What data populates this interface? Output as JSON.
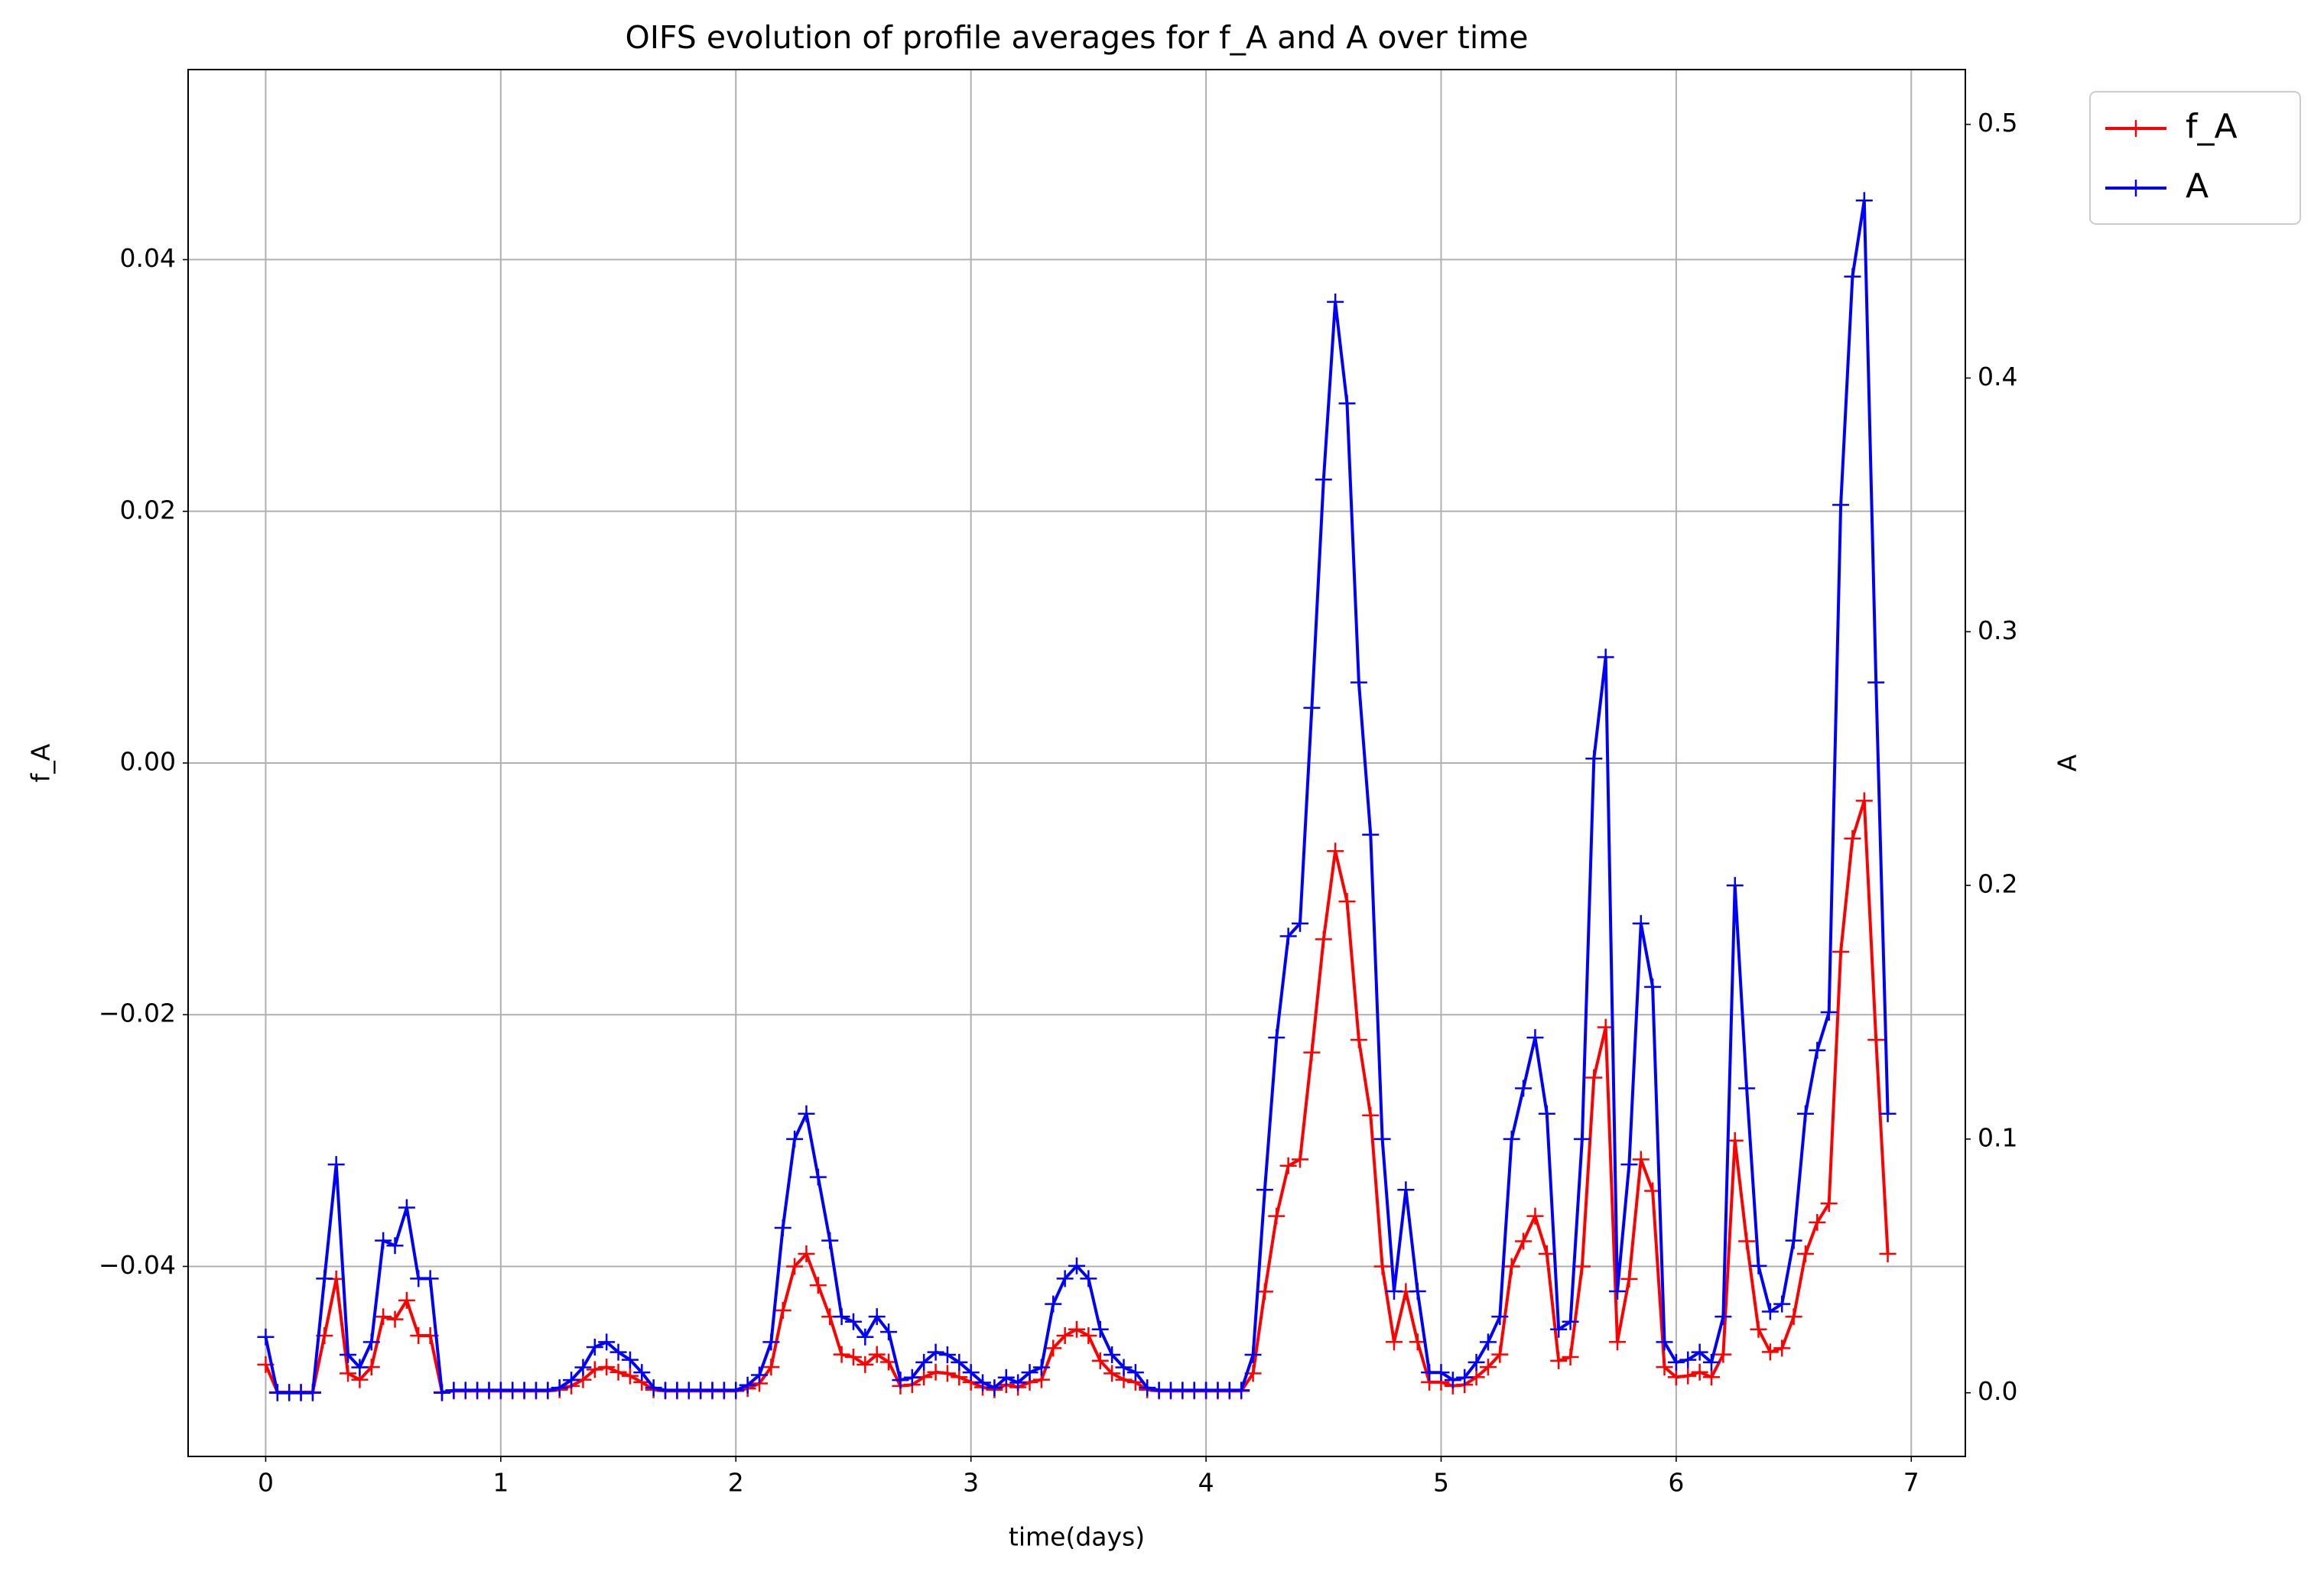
{
  "chart_data": {
    "type": "line",
    "title": "OIFS evolution of profile averages for f_A and A over time",
    "xlabel": "time(days)",
    "ylabel": "f_A",
    "y2label": "A",
    "grid": true,
    "legend": "outside upper right",
    "marker": "+",
    "xlim": [
      -0.33,
      7.23
    ],
    "xticks": [
      0,
      1,
      2,
      3,
      4,
      5,
      6,
      7
    ],
    "ylim": [
      -0.0551,
      0.0551
    ],
    "yticks": [
      {
        "value": -0.04,
        "label": "−0.04"
      },
      {
        "value": -0.02,
        "label": "−0.02"
      },
      {
        "value": 0,
        "label": "0.00"
      },
      0.02,
      0.04
    ],
    "y2lim": [
      -0.0251,
      0.5216
    ],
    "y2ticks": [
      {
        "value": 0,
        "label": "0.0"
      },
      0.1,
      0.2,
      0.3,
      0.4,
      0.5
    ],
    "x": [
      0,
      0.05,
      0.1,
      0.15,
      0.2,
      0.25,
      0.3,
      0.35,
      0.4,
      0.45,
      0.5,
      0.55,
      0.6,
      0.65,
      0.7,
      0.75,
      0.8,
      0.85,
      0.9,
      0.95,
      1,
      1.05,
      1.1,
      1.15,
      1.2,
      1.25,
      1.3,
      1.35,
      1.4,
      1.45,
      1.5,
      1.55,
      1.6,
      1.65,
      1.7,
      1.75,
      1.8,
      1.85,
      1.9,
      1.95,
      2,
      2.05,
      2.1,
      2.15,
      2.2,
      2.25,
      2.3,
      2.35,
      2.4,
      2.45,
      2.5,
      2.55,
      2.6,
      2.65,
      2.7,
      2.75,
      2.8,
      2.85,
      2.9,
      2.95,
      3,
      3.05,
      3.1,
      3.15,
      3.2,
      3.25,
      3.3,
      3.35,
      3.4,
      3.45,
      3.5,
      3.55,
      3.6,
      3.65,
      3.7,
      3.75,
      3.8,
      3.85,
      3.9,
      3.95,
      4,
      4.05,
      4.1,
      4.15,
      4.2,
      4.25,
      4.3,
      4.35,
      4.4,
      4.45,
      4.5,
      4.55,
      4.6,
      4.65,
      4.7,
      4.75,
      4.8,
      4.85,
      4.9,
      4.95,
      5,
      5.05,
      5.1,
      5.15,
      5.2,
      5.25,
      5.3,
      5.35,
      5.4,
      5.45,
      5.5,
      5.55,
      5.6,
      5.65,
      5.7,
      5.75,
      5.8,
      5.85,
      5.9,
      5.95,
      6,
      6.05,
      6.1,
      6.15,
      6.2,
      6.25,
      6.3,
      6.35,
      6.4,
      6.45,
      6.5,
      6.55,
      6.6,
      6.65,
      6.7,
      6.75,
      6.8,
      6.85,
      6.9
    ],
    "series": [
      {
        "name": "f_A",
        "color": "#ff0000",
        "axis": "y",
        "values": [
          -0.0478,
          -0.05,
          -0.05,
          -0.05,
          -0.05,
          -0.0455,
          -0.041,
          -0.0485,
          -0.049,
          -0.048,
          -0.044,
          -0.0442,
          -0.0427,
          -0.0455,
          -0.0455,
          -0.05,
          -0.0499,
          -0.0499,
          -0.0499,
          -0.0499,
          -0.0499,
          -0.0499,
          -0.0499,
          -0.0499,
          -0.0499,
          -0.0498,
          -0.0495,
          -0.049,
          -0.0482,
          -0.048,
          -0.0484,
          -0.0487,
          -0.0492,
          -0.0498,
          -0.0499,
          -0.0499,
          -0.0499,
          -0.0499,
          -0.0499,
          -0.0499,
          -0.0499,
          -0.0497,
          -0.0493,
          -0.048,
          -0.0435,
          -0.04,
          -0.039,
          -0.0415,
          -0.044,
          -0.047,
          -0.0472,
          -0.0478,
          -0.047,
          -0.0476,
          -0.0495,
          -0.0494,
          -0.0488,
          -0.0484,
          -0.0485,
          -0.0488,
          -0.0492,
          -0.0496,
          -0.0498,
          -0.0494,
          -0.0496,
          -0.0492,
          -0.049,
          -0.0465,
          -0.0455,
          -0.045,
          -0.0455,
          -0.0475,
          -0.0485,
          -0.049,
          -0.0492,
          -0.0498,
          -0.0499,
          -0.0499,
          -0.0499,
          -0.0499,
          -0.0499,
          -0.0499,
          -0.0499,
          -0.0499,
          -0.0485,
          -0.042,
          -0.036,
          -0.032,
          -0.0315,
          -0.023,
          -0.014,
          -0.007,
          -0.011,
          -0.022,
          -0.028,
          -0.04,
          -0.046,
          -0.042,
          -0.046,
          -0.0492,
          -0.0492,
          -0.0495,
          -0.0494,
          -0.0488,
          -0.048,
          -0.047,
          -0.04,
          -0.038,
          -0.036,
          -0.039,
          -0.0475,
          -0.0472,
          -0.04,
          -0.025,
          -0.021,
          -0.046,
          -0.041,
          -0.0315,
          -0.034,
          -0.048,
          -0.0488,
          -0.0487,
          -0.0484,
          -0.0488,
          -0.047,
          -0.03,
          -0.038,
          -0.045,
          -0.0468,
          -0.0465,
          -0.044,
          -0.039,
          -0.0365,
          -0.035,
          -0.015,
          -0.006,
          -0.003,
          -0.022,
          -0.039
        ]
      },
      {
        "name": "A",
        "color": "#0000ff",
        "axis": "y2",
        "values": [
          0.022,
          0,
          0,
          0,
          0,
          0.045,
          0.09,
          0.015,
          0.01,
          0.02,
          0.06,
          0.058,
          0.073,
          0.045,
          0.045,
          0,
          0.001,
          0.001,
          0.001,
          0.001,
          0.001,
          0.001,
          0.001,
          0.001,
          0.001,
          0.002,
          0.005,
          0.01,
          0.018,
          0.02,
          0.016,
          0.013,
          0.008,
          0.002,
          0.001,
          0.001,
          0.001,
          0.001,
          0.001,
          0.001,
          0.001,
          0.003,
          0.007,
          0.02,
          0.065,
          0.1,
          0.11,
          0.085,
          0.06,
          0.03,
          0.028,
          0.022,
          0.03,
          0.024,
          0.005,
          0.006,
          0.012,
          0.016,
          0.015,
          0.012,
          0.008,
          0.004,
          0.002,
          0.006,
          0.004,
          0.008,
          0.01,
          0.035,
          0.045,
          0.05,
          0.045,
          0.025,
          0.015,
          0.01,
          0.008,
          0.002,
          0.001,
          0.001,
          0.001,
          0.001,
          0.001,
          0.001,
          0.001,
          0.001,
          0.015,
          0.08,
          0.14,
          0.18,
          0.185,
          0.27,
          0.36,
          0.43,
          0.39,
          0.28,
          0.22,
          0.1,
          0.04,
          0.08,
          0.04,
          0.008,
          0.008,
          0.005,
          0.006,
          0.012,
          0.02,
          0.03,
          0.1,
          0.12,
          0.14,
          0.11,
          0.025,
          0.028,
          0.1,
          0.25,
          0.29,
          0.04,
          0.09,
          0.185,
          0.16,
          0.02,
          0.012,
          0.013,
          0.016,
          0.012,
          0.03,
          0.2,
          0.12,
          0.05,
          0.032,
          0.035,
          0.06,
          0.11,
          0.135,
          0.15,
          0.35,
          0.44,
          0.47,
          0.28,
          0.11
        ]
      }
    ]
  }
}
